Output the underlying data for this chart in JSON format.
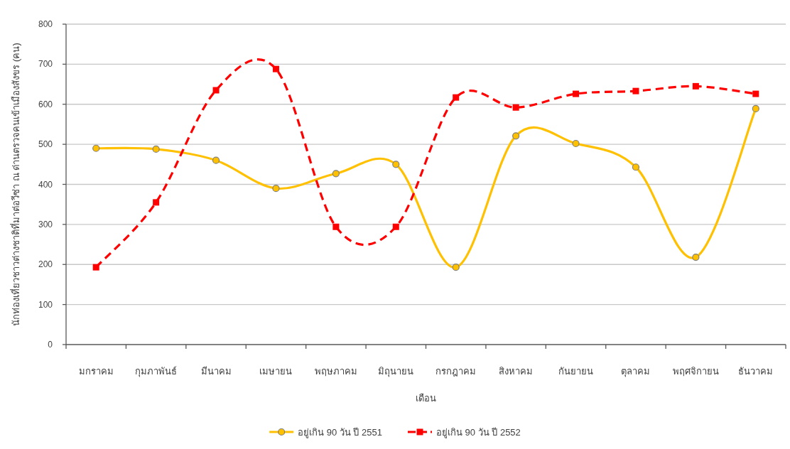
{
  "chart_data": {
    "type": "line",
    "xlabel": "เดือน",
    "ylabel": "นักท่องเที่ยวชาวต่างชาติที่มาต่อวีซ่า ณ ด่านตรวจคนเข้าเมืองสังขร (คน)",
    "categories": [
      "มกราคม",
      "กุมภาพันธ์",
      "มีนาคม",
      "เมษายน",
      "พฤษภาคม",
      "มิถุนายน",
      "กรกฎาคม",
      "สิงหาคม",
      "กันยายน",
      "ตุลาคม",
      "พฤศจิกายน",
      "ธันวาคม"
    ],
    "ylim": [
      0,
      800
    ],
    "yticks": [
      0,
      100,
      200,
      300,
      400,
      500,
      600,
      700,
      800
    ],
    "grid": "y",
    "legend": "bottom",
    "series": [
      {
        "name": "อยู่เกิน 90 วัน ปี 2551",
        "color": "#ffc000",
        "marker": "circle",
        "line_style": "solid",
        "values": [
          490,
          488,
          460,
          390,
          427,
          450,
          193,
          521,
          502,
          443,
          218,
          589
        ]
      },
      {
        "name": "อยู่เกิน 90 วัน ปี 2552",
        "color": "#ff0000",
        "marker": "square",
        "line_style": "dashed",
        "values": [
          193,
          355,
          635,
          688,
          294,
          294,
          617,
          592,
          626,
          633,
          645,
          626
        ]
      }
    ]
  }
}
